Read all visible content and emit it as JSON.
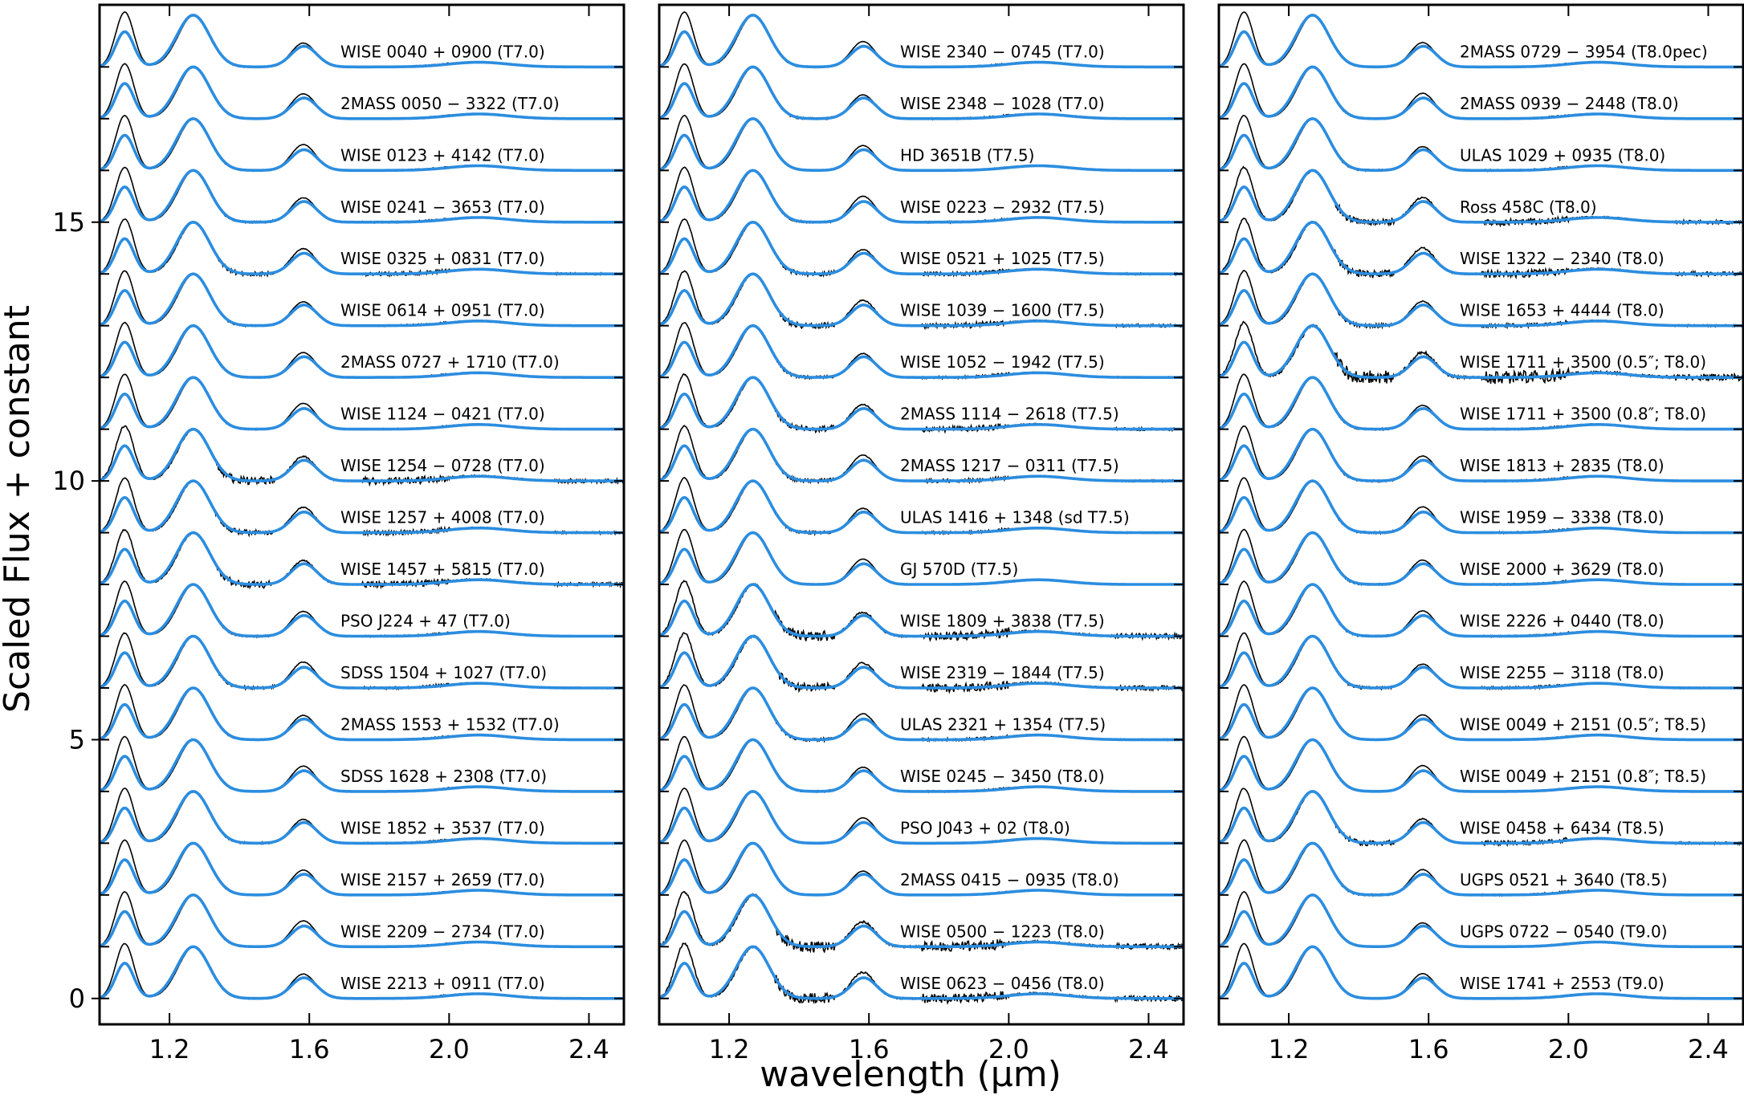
{
  "chart_data": {
    "type": "line",
    "xlabel": "wavelength (μm)",
    "ylabel": "Scaled Flux + constant",
    "xlim": [
      1.0,
      2.5
    ],
    "ylim": [
      -0.5,
      19.2
    ],
    "x_ticks": [
      1.2,
      1.6,
      2.0,
      2.4
    ],
    "x_tick_labels": [
      "1.2",
      "1.6",
      "2.0",
      "2.4"
    ],
    "y_ticks": [
      0,
      5,
      10,
      15
    ],
    "y_tick_labels": [
      "0",
      "5",
      "10",
      "15"
    ],
    "offset_step": 1.0,
    "series_styles": {
      "observed_color": "#000000",
      "model_color": "#2b8de0"
    },
    "panels": [
      {
        "labels": [
          "WISE 0040 + 0900 (T7.0)",
          "2MASS 0050 − 3322 (T7.0)",
          "WISE 0123 + 4142 (T7.0)",
          "WISE 0241 − 3653 (T7.0)",
          "WISE 0325 + 0831 (T7.0)",
          "WISE 0614 + 0951 (T7.0)",
          "2MASS 0727 + 1710 (T7.0)",
          "WISE 1124 − 0421 (T7.0)",
          "WISE 1254 − 0728 (T7.0)",
          "WISE 1257 + 4008 (T7.0)",
          "WISE 1457 + 5815 (T7.0)",
          "PSO J224 + 47 (T7.0)",
          "SDSS 1504 + 1027 (T7.0)",
          "2MASS 1553 + 1532 (T7.0)",
          "SDSS 1628 + 2308 (T7.0)",
          "WISE 1852 + 3537 (T7.0)",
          "WISE 2157 + 2659 (T7.0)",
          "WISE 2209 − 2734 (T7.0)",
          "WISE 2213 + 0911 (T7.0)"
        ],
        "noise": [
          0.15,
          0.1,
          0.15,
          0.2,
          0.4,
          0.2,
          0.15,
          0.15,
          0.8,
          0.5,
          0.7,
          0.2,
          0.3,
          0.15,
          0.1,
          0.2,
          0.1,
          0.15,
          0.15
        ]
      },
      {
        "labels": [
          "WISE 2340 − 0745 (T7.0)",
          "WISE 2348 − 1028 (T7.0)",
          "HD 3651B (T7.5)",
          "WISE 0223 − 2932 (T7.5)",
          "WISE 0521 + 1025 (T7.5)",
          "WISE 1039 − 1600 (T7.5)",
          "WISE 1052 − 1942 (T7.5)",
          "2MASS 1114 − 2618 (T7.5)",
          "2MASS 1217 − 0311 (T7.5)",
          "ULAS 1416 + 1348 (sd T7.5)",
          "GJ 570D (T7.5)",
          "WISE 1809 + 3838 (T7.5)",
          "WISE 2319 − 1844 (T7.5)",
          "ULAS 2321 + 1354 (T7.5)",
          "WISE 0245 − 3450 (T8.0)",
          "PSO J043 + 02 (T8.0)",
          "2MASS 0415 − 0935 (T8.0)",
          "WISE 0500 − 1223 (T8.0)",
          "WISE 0623 − 0456 (T8.0)"
        ],
        "noise": [
          0.15,
          0.2,
          0.1,
          0.2,
          0.4,
          0.6,
          0.3,
          0.6,
          0.4,
          0.3,
          0.1,
          1.0,
          0.9,
          0.3,
          0.2,
          0.1,
          0.1,
          1.1,
          1.0
        ]
      },
      {
        "labels": [
          "2MASS 0729 − 3954 (T8.0pec)",
          "2MASS 0939 − 2448 (T8.0)",
          "ULAS 1029 + 0935 (T8.0)",
          "Ross 458C (T8.0)",
          "WISE 1322 − 2340 (T8.0)",
          "WISE 1653 + 4444 (T8.0)",
          "WISE 1711 + 3500 (0.5″; T8.0)",
          "WISE 1711 + 3500 (0.8″; T8.0)",
          "WISE 1813 + 2835 (T8.0)",
          "WISE 1959 − 3338 (T8.0)",
          "WISE 2000 + 3629 (T8.0)",
          "WISE 2226 + 0440 (T8.0)",
          "WISE 2255 − 3118 (T8.0)",
          "WISE 0049 + 2151 (0.5″; T8.5)",
          "WISE 0049 + 2151 (0.8″; T8.5)",
          "WISE 0458 + 6434 (T8.5)",
          "UGPS 0521 + 3640 (T8.5)",
          "UGPS 0722 − 0540 (T9.0)",
          "WISE 1741 + 2553 (T9.0)"
        ],
        "noise": [
          0.1,
          0.15,
          0.2,
          0.7,
          0.8,
          0.4,
          1.4,
          0.2,
          0.2,
          0.2,
          0.2,
          0.2,
          0.3,
          0.1,
          0.1,
          0.5,
          0.2,
          0.1,
          0.1
        ]
      }
    ]
  }
}
